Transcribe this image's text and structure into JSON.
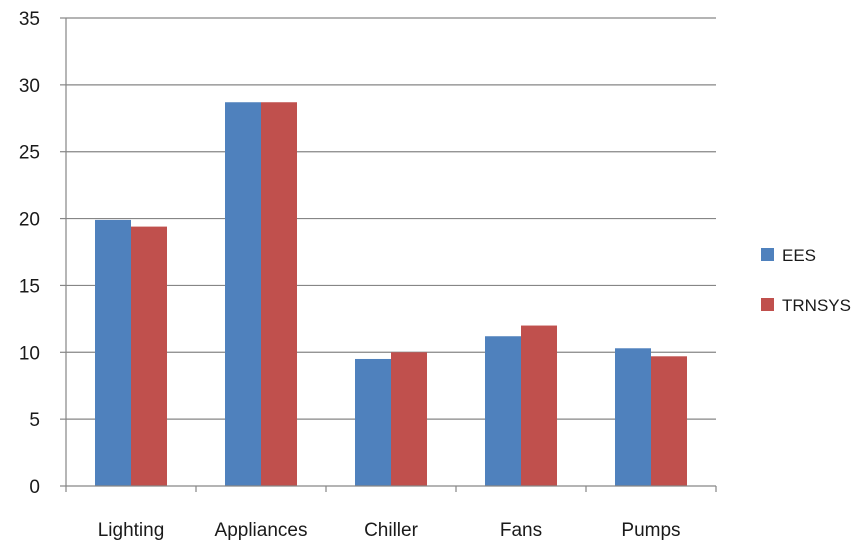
{
  "chart_data": {
    "type": "bar",
    "categories": [
      "Lighting",
      "Appliances",
      "Chiller",
      "Fans",
      "Pumps"
    ],
    "series": [
      {
        "name": "EES",
        "values": [
          19.9,
          28.7,
          9.5,
          11.2,
          10.3
        ],
        "color": "#4f81bd"
      },
      {
        "name": "TRNSYS",
        "values": [
          19.4,
          28.7,
          10.0,
          12.0,
          9.7
        ],
        "color": "#c0504d"
      }
    ],
    "ylim": [
      0,
      35
    ],
    "yticks": [
      0,
      5,
      10,
      15,
      20,
      25,
      30,
      35
    ],
    "grid": true,
    "legend": "right",
    "title": "",
    "xlabel": "",
    "ylabel": ""
  }
}
